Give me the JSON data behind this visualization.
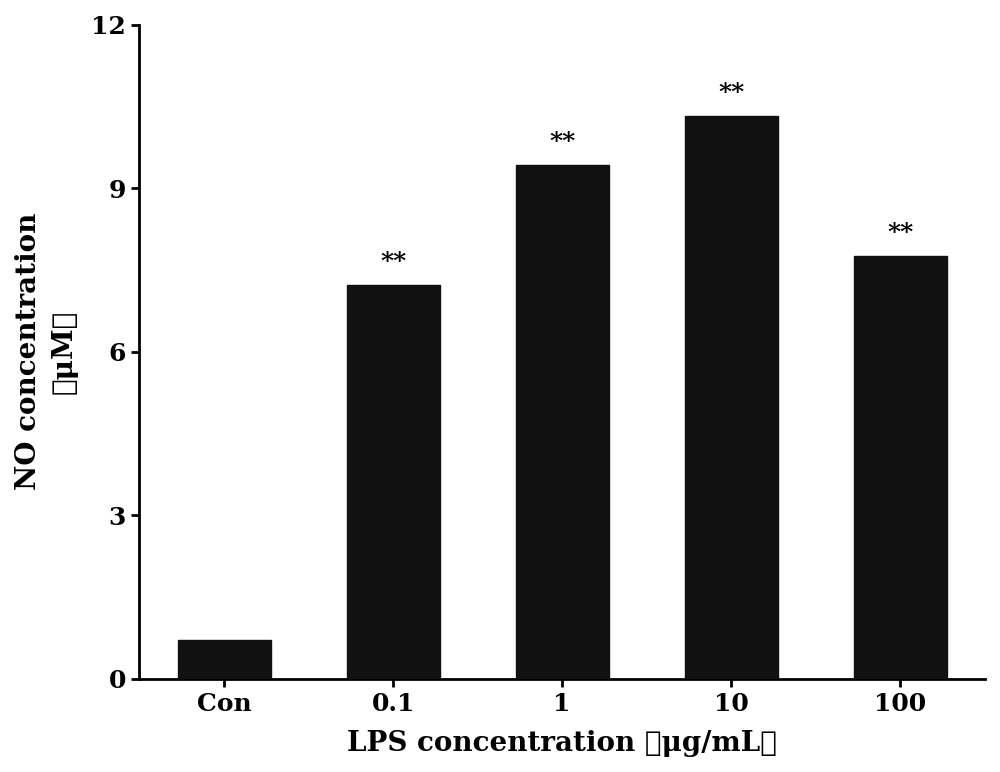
{
  "categories": [
    "Con",
    "0.1",
    "1",
    "10",
    "100"
  ],
  "values": [
    0.72,
    7.22,
    9.42,
    10.32,
    7.75
  ],
  "bar_color": "#111111",
  "bar_width": 0.55,
  "ylabel_line1": "NO concentration",
  "ylabel_line2": "（μM）",
  "xlabel": "LPS concentration （μg/mL）",
  "ylim": [
    0,
    12
  ],
  "yticks": [
    0,
    3,
    6,
    9,
    12
  ],
  "significance": [
    null,
    "**",
    "**",
    "**",
    "**"
  ],
  "sig_fontsize": 18,
  "axis_label_fontsize": 20,
  "tick_fontsize": 18,
  "background_color": "#ffffff"
}
